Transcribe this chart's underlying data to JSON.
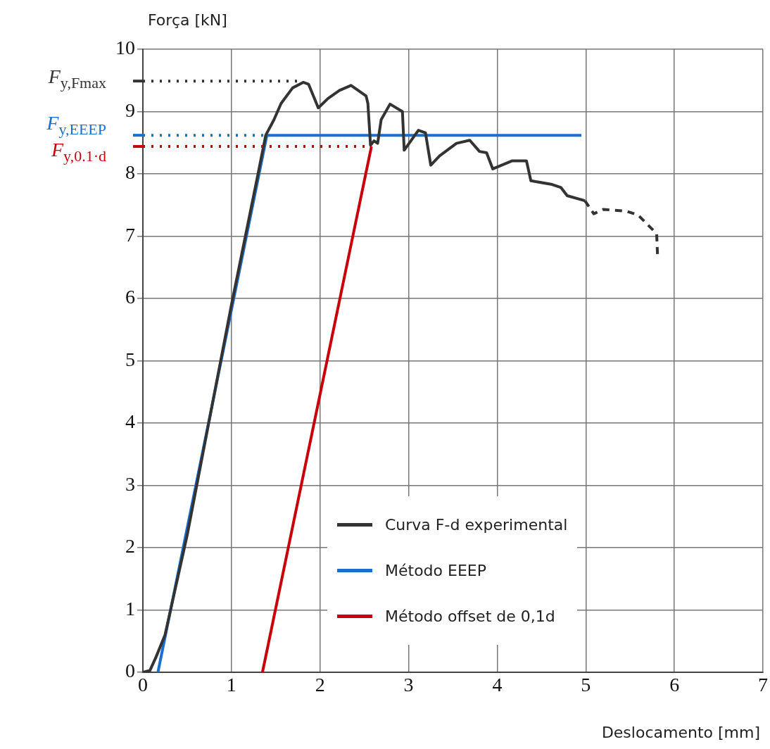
{
  "chart_data": {
    "type": "line",
    "xlabel": "Deslocamento [mm]",
    "ylabel": "Força [kN]",
    "xlim": [
      0,
      7
    ],
    "xticks": [
      0,
      1,
      2,
      3,
      4,
      5,
      6,
      7
    ],
    "ylim": [
      0,
      10
    ],
    "yticks": [
      0,
      1,
      2,
      3,
      4,
      5,
      6,
      7,
      8,
      9,
      10
    ],
    "grid": true,
    "legend": "bottom right",
    "marker": "none",
    "series": [
      {
        "name": "Curva F-d experimental",
        "color": "#333333",
        "line_style": "solid",
        "x": [
          0,
          0.08,
          0.15,
          0.25,
          0.5,
          1.0,
          1.3,
          1.387,
          1.48,
          1.56,
          1.69,
          1.81,
          1.87,
          1.98,
          2.09,
          2.22,
          2.35,
          2.43,
          2.52,
          2.54,
          2.57,
          2.61,
          2.65,
          2.69,
          2.79,
          2.93,
          2.95,
          3.11,
          3.19,
          3.25,
          3.35,
          3.54,
          3.69,
          3.8,
          3.88,
          3.95,
          4.17,
          4.33,
          4.38,
          4.62,
          4.72,
          4.79,
          4.99
        ],
        "values": [
          0,
          0.03,
          0.25,
          0.6,
          2.2,
          5.9,
          8.0,
          8.62,
          8.87,
          9.13,
          9.38,
          9.47,
          9.44,
          9.06,
          9.21,
          9.34,
          9.42,
          9.34,
          9.25,
          9.13,
          8.46,
          8.53,
          8.49,
          8.87,
          9.12,
          9.0,
          8.38,
          8.7,
          8.66,
          8.14,
          8.29,
          8.49,
          8.54,
          8.36,
          8.34,
          8.08,
          8.21,
          8.21,
          7.89,
          7.83,
          7.78,
          7.65,
          7.57
        ]
      },
      {
        "color": "#333333",
        "line_style": "dashed",
        "x": [
          4.99,
          5.09,
          5.2,
          5.46,
          5.59,
          5.8,
          5.81
        ],
        "values": [
          7.57,
          7.36,
          7.43,
          7.4,
          7.34,
          7.04,
          6.69
        ]
      },
      {
        "name": "Método EEEP",
        "color": "#1a6fd0",
        "line_style": "solid",
        "x": [
          0.17,
          1.4,
          4.95
        ],
        "values": [
          0,
          8.62,
          8.62
        ]
      },
      {
        "name": "Método offset de 0,1d",
        "color": "#c8000a",
        "line_style": "solid",
        "x": [
          1.35,
          2.58
        ],
        "values": [
          0,
          8.44
        ]
      }
    ],
    "ref_lines": [
      {
        "axis": "y",
        "value": 9.49,
        "label": "F$_{y,Fmax}$",
        "color": "#333333",
        "line_style": "dotted"
      },
      {
        "axis": "y",
        "value": 8.62,
        "label": "F$_{y,EEEP}$",
        "color": "#1a6fd0",
        "line_style": "dotted"
      },
      {
        "axis": "y",
        "value": 8.44,
        "label": "F$_{y,0.1·d}$",
        "color": "#c8000a",
        "line_style": "dotted"
      }
    ]
  }
}
